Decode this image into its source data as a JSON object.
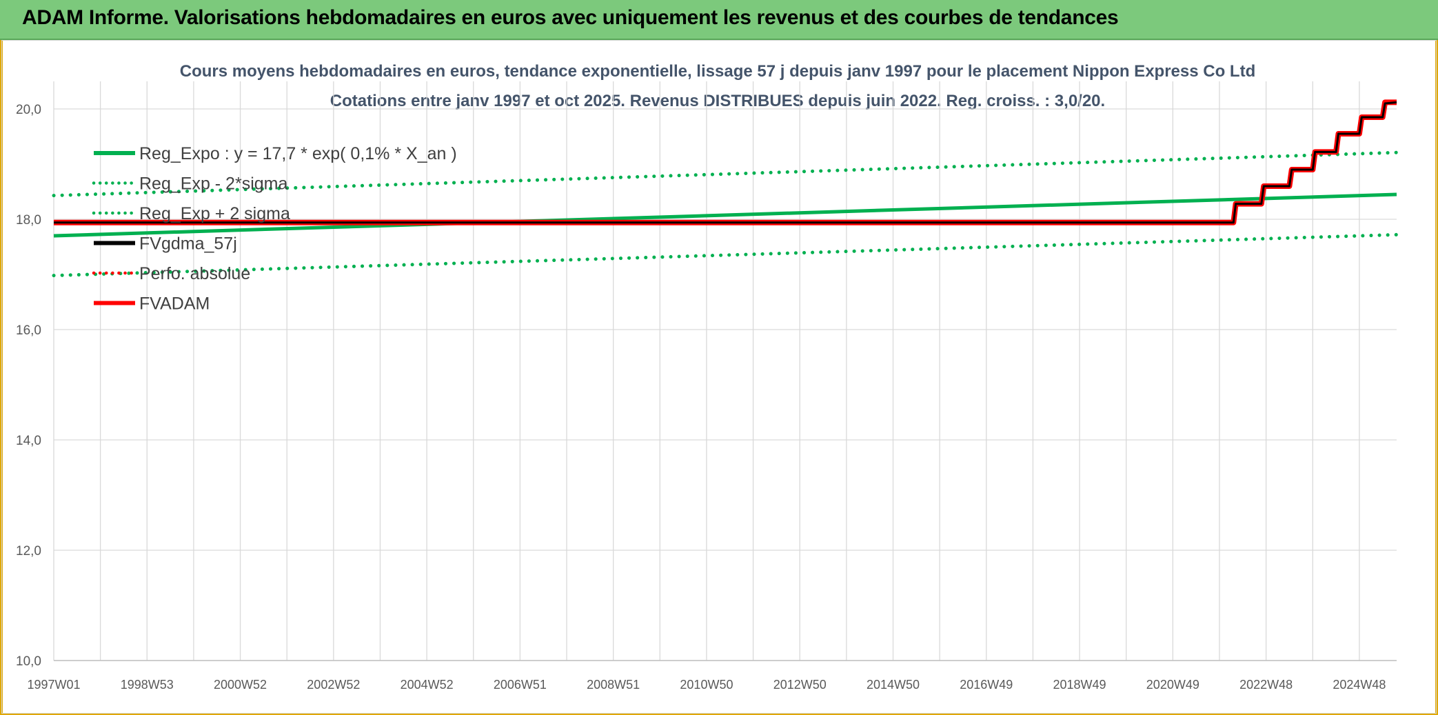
{
  "header": {
    "title": "ADAM Informe. Valorisations hebdomadaires en euros avec uniquement les revenus et des courbes de tendances"
  },
  "colors": {
    "banner": "#7cc97c",
    "green": "#00b050",
    "red": "#ff0000",
    "black": "#000000",
    "grid": "#d9d9d9"
  },
  "chart_data": {
    "type": "line",
    "title": "Cours moyens hebdomadaires en euros, tendance exponentielle, lissage 57 j depuis janv 1997 pour le placement Nippon Express Co Ltd",
    "subtitle": "Cotations entre janv 1997 et oct 2025. Revenus DISTRIBUES depuis juin 2022. Reg. croiss. : 3,0/20.",
    "xlabel": "",
    "ylabel": "",
    "x_range": [
      1997.0,
      2025.8
    ],
    "ylim": [
      10,
      20.5
    ],
    "y_ticks": [
      "10,0",
      "12,0",
      "14,0",
      "16,0",
      "18,0",
      "20,0"
    ],
    "y_tick_values": [
      10,
      12,
      14,
      16,
      18,
      20
    ],
    "x_ticks": [
      "1997W01",
      "1998W53",
      "2000W52",
      "2002W52",
      "2004W52",
      "2006W51",
      "2008W51",
      "2010W50",
      "2012W50",
      "2014W50",
      "2016W49",
      "2018W49",
      "2020W49",
      "2022W48",
      "2024W48"
    ],
    "x_tick_values": [
      1997.0,
      1999.0,
      2001.0,
      2003.0,
      2005.0,
      2007.0,
      2009.0,
      2011.0,
      2013.0,
      2015.0,
      2017.0,
      2019.0,
      2021.0,
      2023.0,
      2025.0
    ],
    "grid": true,
    "legend_position": "top-left",
    "legend": [
      {
        "label": "Reg_Expo : y = 17,7 * exp( 0,1% *  X_an )",
        "color": "#00b050",
        "style": "solid"
      },
      {
        "label": "Reg_Exp - 2*sigma",
        "color": "#00b050",
        "style": "dotted"
      },
      {
        "label": "Reg_Exp + 2 sigma",
        "color": "#00b050",
        "style": "dotted"
      },
      {
        "label": "FVgdma_57j",
        "color": "#000000",
        "style": "solid"
      },
      {
        "label": "Perfo. absolue",
        "color": "#ff0000",
        "style": "dotted"
      },
      {
        "label": "FVADAM",
        "color": "#ff0000",
        "style": "solid"
      }
    ],
    "series": [
      {
        "name": "Reg_Expo : y = 17,7 * exp( 0,1% *  X_an )",
        "x": [
          1997.0,
          2025.8
        ],
        "y": [
          17.7,
          18.45
        ]
      },
      {
        "name": "Reg_Exp - 2*sigma",
        "x": [
          1997.0,
          2025.8
        ],
        "y": [
          16.98,
          17.72
        ]
      },
      {
        "name": "Reg_Exp + 2 sigma",
        "x": [
          1997.0,
          2025.8
        ],
        "y": [
          18.43,
          19.21
        ]
      },
      {
        "name": "FVgdma_57j",
        "x": [
          1997.0,
          2022.3,
          2022.35,
          2022.9,
          2022.95,
          2023.5,
          2023.55,
          2024.0,
          2024.05,
          2024.5,
          2024.55,
          2025.0,
          2025.05,
          2025.5,
          2025.55,
          2025.8
        ],
        "y": [
          17.94,
          17.94,
          18.28,
          18.28,
          18.6,
          18.6,
          18.9,
          18.9,
          19.22,
          19.22,
          19.55,
          19.55,
          19.85,
          19.85,
          20.1,
          20.12
        ]
      },
      {
        "name": "FVADAM",
        "x": [
          1997.0,
          2022.3,
          2022.35,
          2022.9,
          2022.95,
          2023.5,
          2023.55,
          2024.0,
          2024.05,
          2024.5,
          2024.55,
          2025.0,
          2025.05,
          2025.5,
          2025.55,
          2025.8
        ],
        "y": [
          17.94,
          17.94,
          18.28,
          18.28,
          18.6,
          18.6,
          18.9,
          18.9,
          19.22,
          19.22,
          19.55,
          19.55,
          19.85,
          19.85,
          20.12,
          20.12
        ]
      }
    ]
  }
}
